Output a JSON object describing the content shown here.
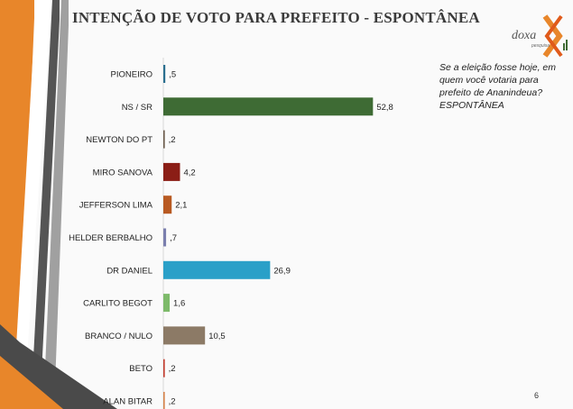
{
  "slide": {
    "title": "INTENÇÃO DE VOTO PARA PREFEITO - ESPONTÂNEA",
    "question": "Se a eleição fosse hoje, em\nquem você votaria para\nprefeito de Ananindeua?\nESPONTÂNEA",
    "page_number": "6",
    "logo": {
      "name": "doxa",
      "sub": "pesquisa"
    }
  },
  "colors": {
    "accent_orange": "#e8862a",
    "deco_dark": "#4a4a4a",
    "deco_gray": "#9a9a9a"
  },
  "chart_data": {
    "type": "bar",
    "orientation": "horizontal",
    "categories": [
      "PIONEIRO",
      "NS / SR",
      "NEWTON DO PT",
      "MIRO SANOVA",
      "JEFFERSON LIMA",
      "HELDER BERBALHO",
      "DR DANIEL",
      "CARLITO BEGOT",
      "BRANCO / NULO",
      "BETO",
      "ALAN BITAR"
    ],
    "values": [
      0.5,
      52.8,
      0.2,
      4.2,
      2.1,
      0.7,
      26.9,
      1.6,
      10.5,
      0.2,
      0.2
    ],
    "value_labels": [
      ",5",
      "52,8",
      ",2",
      "4,2",
      "2,1",
      ",7",
      "26,9",
      "1,6",
      "10,5",
      ",2",
      ",2"
    ],
    "bar_colors": [
      "#2a6f8f",
      "#3e6b34",
      "#6b5a4a",
      "#8b1e16",
      "#b85a22",
      "#7b7fae",
      "#2aa0c8",
      "#7dba6a",
      "#8c7a66",
      "#c23a2c",
      "#d6824a"
    ],
    "xlim": [
      0,
      55
    ],
    "grid": false,
    "legend": "none"
  }
}
